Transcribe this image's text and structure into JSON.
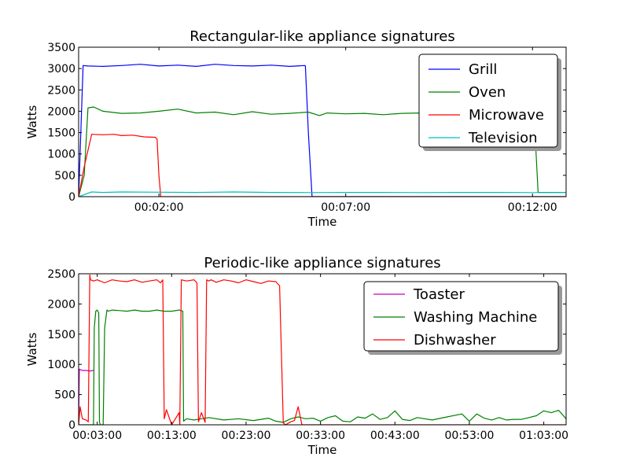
{
  "chart_data": [
    {
      "type": "line",
      "title": "Rectangular-like appliance signatures",
      "xlabel": "Time",
      "ylabel": "Watts",
      "xlim": [
        -0.15,
        12.9
      ],
      "ylim": [
        0,
        3500
      ],
      "x_unit": "minutes",
      "xticks": [
        {
          "value": 2,
          "label": "00:02:00"
        },
        {
          "value": 7,
          "label": "00:07:00"
        },
        {
          "value": 12,
          "label": "00:12:00"
        }
      ],
      "yticks": [
        {
          "value": 0,
          "label": "0"
        },
        {
          "value": 500,
          "label": "500"
        },
        {
          "value": 1000,
          "label": "1000"
        },
        {
          "value": 1500,
          "label": "1500"
        },
        {
          "value": 2000,
          "label": "2000"
        },
        {
          "value": 2500,
          "label": "2500"
        },
        {
          "value": 3000,
          "label": "3000"
        },
        {
          "value": 3500,
          "label": "3500"
        }
      ],
      "legend": "top-right",
      "grid": false,
      "series": [
        {
          "name": "Grill",
          "color": "#0000ff",
          "x": [
            -0.15,
            -0.03,
            0.1,
            0.5,
            1.0,
            1.5,
            2.0,
            2.5,
            3.0,
            3.5,
            4.0,
            4.5,
            5.0,
            5.5,
            5.9,
            5.92,
            6.0,
            6.1,
            12.9
          ],
          "y": [
            0,
            3070,
            3060,
            3050,
            3070,
            3100,
            3060,
            3080,
            3050,
            3100,
            3070,
            3060,
            3080,
            3050,
            3070,
            3060,
            1500,
            0,
            0
          ]
        },
        {
          "name": "Oven",
          "color": "#008000",
          "x": [
            -0.15,
            0.0,
            0.1,
            0.25,
            0.5,
            1.0,
            1.5,
            2.0,
            2.5,
            3.0,
            3.5,
            4.0,
            4.5,
            5.0,
            5.5,
            6.0,
            6.3,
            6.5,
            7.0,
            7.5,
            8.0,
            8.5,
            9.0,
            9.5,
            10.0,
            11.0,
            12.0,
            12.08,
            12.15,
            12.9
          ],
          "y": [
            0,
            500,
            2080,
            2100,
            2000,
            1950,
            1960,
            2000,
            2050,
            1960,
            1980,
            1920,
            1990,
            1930,
            1950,
            1980,
            1900,
            1960,
            1940,
            1950,
            1920,
            1950,
            1960,
            1930,
            1950,
            1940,
            1900,
            1300,
            100,
            100
          ],
          "hidden_behind_legend": true
        },
        {
          "name": "Microwave",
          "color": "#ff0000",
          "x": [
            -0.15,
            0.0,
            0.2,
            0.5,
            0.8,
            1.0,
            1.3,
            1.6,
            1.9,
            1.95,
            2.0,
            2.05,
            12.9
          ],
          "y": [
            0,
            700,
            1460,
            1450,
            1460,
            1430,
            1440,
            1400,
            1390,
            1350,
            500,
            0,
            0
          ]
        },
        {
          "name": "Television",
          "color": "#00bfbf",
          "x": [
            -0.15,
            0.2,
            0.5,
            1.0,
            2.0,
            3.0,
            4.0,
            5.0,
            6.0,
            7.0,
            8.0,
            9.0,
            10.0,
            11.0,
            12.0,
            12.9
          ],
          "y": [
            0,
            110,
            100,
            110,
            105,
            100,
            110,
            100,
            95,
            100,
            100,
            95,
            100,
            100,
            95,
            100
          ]
        }
      ]
    },
    {
      "type": "line",
      "title": "Periodic-like  appliance signatures",
      "xlabel": "Time",
      "ylabel": "Watts",
      "xlim": [
        0.5,
        66.0
      ],
      "ylim": [
        0,
        2500
      ],
      "x_unit": "minutes",
      "xticks": [
        {
          "value": 3,
          "label": "00:03:00"
        },
        {
          "value": 13,
          "label": "00:13:00"
        },
        {
          "value": 23,
          "label": "00:23:00"
        },
        {
          "value": 33,
          "label": "00:33:00"
        },
        {
          "value": 43,
          "label": "00:43:00"
        },
        {
          "value": 53,
          "label": "00:53:00"
        },
        {
          "value": 63,
          "label": "01:03:00"
        }
      ],
      "yticks": [
        {
          "value": 0,
          "label": "0"
        },
        {
          "value": 500,
          "label": "500"
        },
        {
          "value": 1000,
          "label": "1000"
        },
        {
          "value": 1500,
          "label": "1500"
        },
        {
          "value": 2000,
          "label": "2000"
        },
        {
          "value": 2500,
          "label": "2500"
        }
      ],
      "legend": "top-right",
      "grid": false,
      "series": [
        {
          "name": "Toaster",
          "color": "#bf00bf",
          "x": [
            0.5,
            0.6,
            1.0,
            1.5,
            2.0,
            2.5,
            2.6
          ],
          "y": [
            0,
            920,
            900,
            900,
            890,
            900,
            900
          ]
        },
        {
          "name": "Washing Machine",
          "color": "#008000",
          "x": [
            0.5,
            1.5,
            2.5,
            2.6,
            2.8,
            3.0,
            3.2,
            3.3,
            3.4,
            3.8,
            4.0,
            4.3,
            4.5,
            5.0,
            6.0,
            7.0,
            8.0,
            9.0,
            10.0,
            11.0,
            12.0,
            13.0,
            14.0,
            14.5,
            14.6,
            15.0,
            16.0,
            18.0,
            20.0,
            22.0,
            24.0,
            26.0,
            27.0,
            28.0,
            29.0,
            30.0,
            31.0,
            32.0,
            33.0,
            34.0,
            35.0,
            36.0,
            37.0,
            38.0,
            39.0,
            40.0,
            41.0,
            42.0,
            43.0,
            44.0,
            45.0,
            46.0,
            48.0,
            50.0,
            52.0,
            53.0,
            54.0,
            55.0,
            56.0,
            57.0,
            58.0,
            59.0,
            60.0,
            61.0,
            62.0,
            63.0,
            64.0,
            65.0,
            66.0
          ],
          "y": [
            0,
            0,
            0,
            1600,
            1880,
            1900,
            1850,
            50,
            0,
            0,
            1600,
            1900,
            1880,
            1900,
            1890,
            1880,
            1900,
            1880,
            1880,
            1900,
            1880,
            1880,
            1900,
            1880,
            60,
            100,
            80,
            120,
            80,
            100,
            70,
            110,
            60,
            40,
            100,
            130,
            100,
            110,
            60,
            120,
            150,
            60,
            50,
            130,
            110,
            180,
            90,
            120,
            230,
            90,
            70,
            120,
            80,
            130,
            180,
            60,
            180,
            110,
            80,
            120,
            80,
            90,
            90,
            120,
            150,
            230,
            200,
            240,
            100
          ]
        },
        {
          "name": "Dishwasher",
          "color": "#ff0000",
          "x": [
            0.5,
            0.7,
            1.0,
            1.5,
            1.8,
            2.0,
            2.1,
            2.5,
            3.0,
            4.0,
            5.0,
            6.0,
            7.0,
            8.0,
            9.0,
            10.0,
            11.0,
            11.5,
            11.8,
            12.0,
            12.3,
            13.0,
            13.5,
            14.0,
            14.1,
            14.3,
            15.0,
            16.0,
            16.4,
            16.6,
            17.0,
            17.5,
            17.7,
            18.0,
            18.3,
            19.0,
            20.0,
            21.0,
            22.0,
            23.0,
            24.0,
            25.0,
            26.0,
            27.0,
            27.5,
            28.0,
            28.3,
            29.0,
            29.5,
            30.0,
            30.5,
            31.0,
            66.0
          ],
          "y": [
            0,
            300,
            100,
            80,
            50,
            2480,
            2400,
            2380,
            2400,
            2350,
            2400,
            2380,
            2370,
            2400,
            2360,
            2380,
            2400,
            2350,
            2400,
            100,
            250,
            0,
            100,
            200,
            0,
            2400,
            2380,
            2400,
            2350,
            50,
            200,
            40,
            2400,
            2380,
            2400,
            2360,
            2400,
            2380,
            2350,
            2400,
            2370,
            2340,
            2380,
            2370,
            2300,
            30,
            0,
            50,
            70,
            300,
            0,
            0,
            0
          ]
        }
      ]
    }
  ]
}
